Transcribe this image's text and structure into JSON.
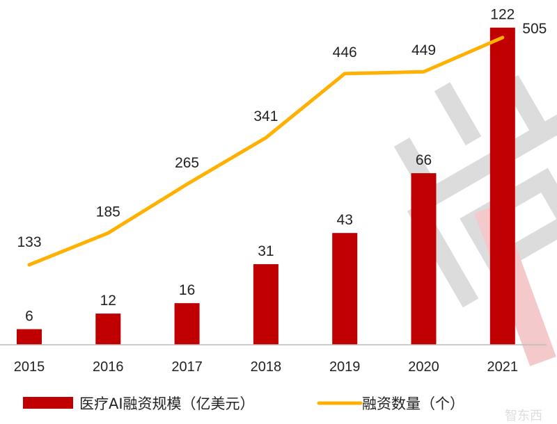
{
  "chart_data": {
    "type": "bar+line",
    "categories": [
      "2015",
      "2016",
      "2017",
      "2018",
      "2019",
      "2020",
      "2021"
    ],
    "series": [
      {
        "name": "医疗AI融资规模（亿美元）",
        "type": "bar",
        "color": "#c00000",
        "values": [
          6,
          12,
          16,
          31,
          43,
          66,
          122
        ]
      },
      {
        "name": "融资数量（个）",
        "type": "line",
        "color": "#ffb000",
        "values": [
          133,
          185,
          265,
          341,
          446,
          449,
          505
        ]
      }
    ],
    "legend_position": "bottom",
    "grid": false,
    "watermark": "尚",
    "corner_logo": "智东西"
  }
}
